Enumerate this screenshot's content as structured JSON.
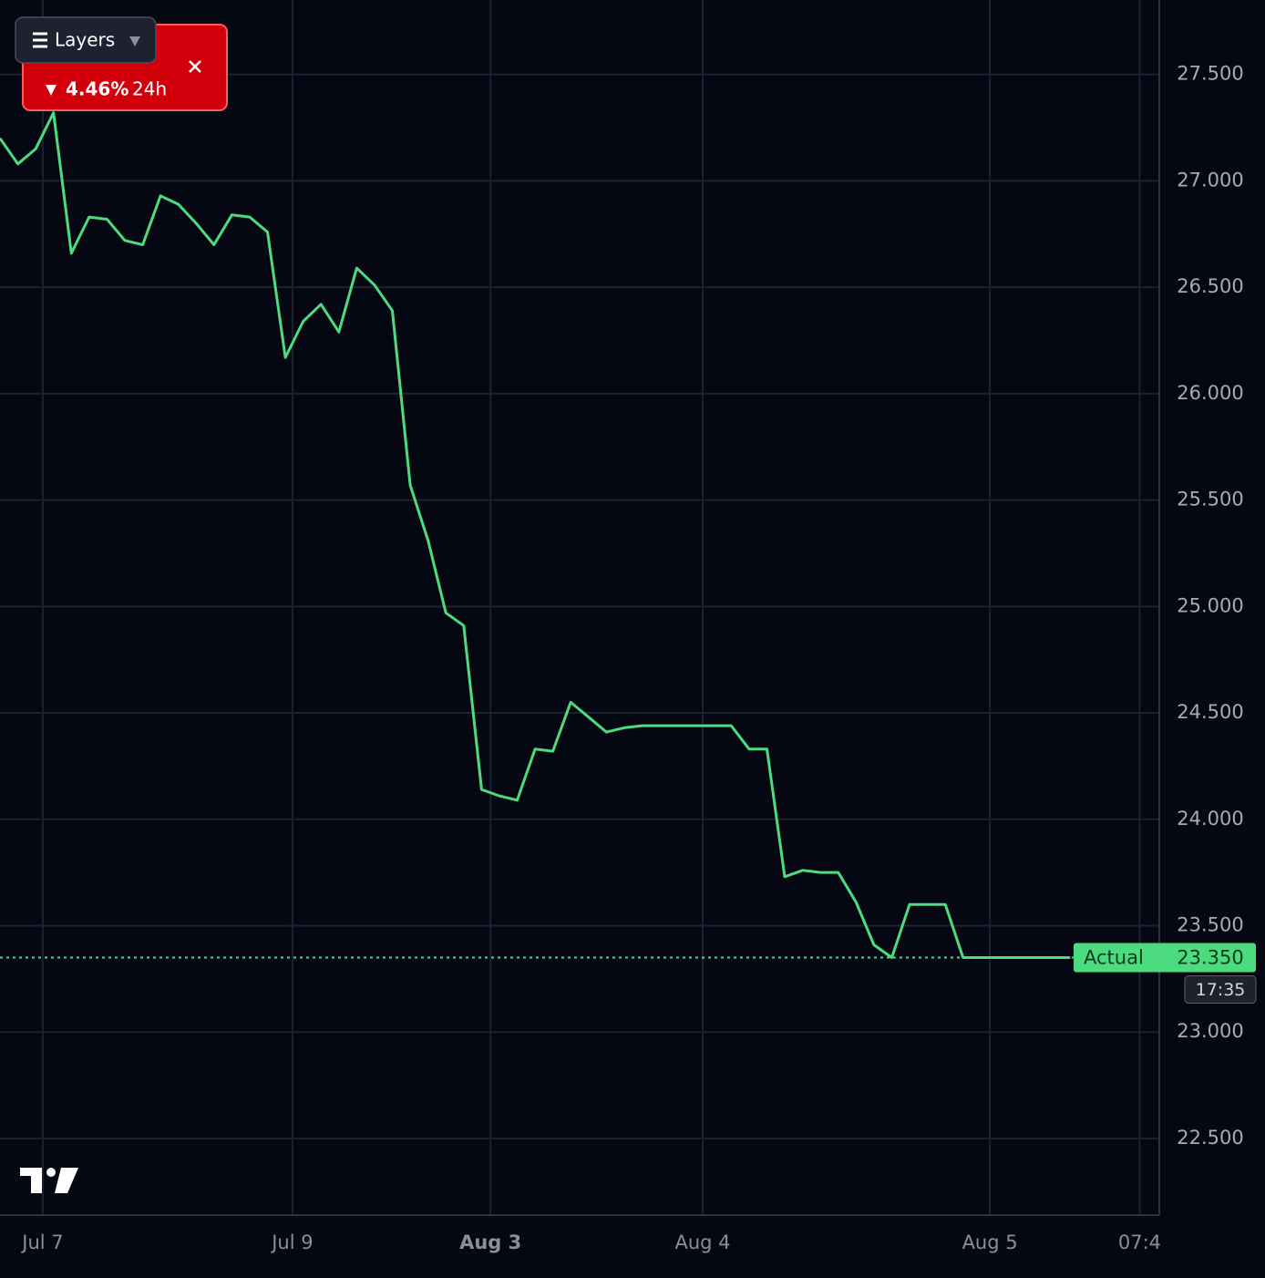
{
  "chart_data": {
    "type": "line",
    "x": [
      0,
      1,
      2,
      3,
      4,
      5,
      6,
      7,
      8,
      9,
      10,
      11,
      12,
      13,
      14,
      15,
      16,
      17,
      18,
      19,
      20,
      21,
      22,
      23,
      24,
      25,
      26,
      27,
      28,
      29,
      30,
      31,
      32,
      33,
      34,
      35,
      36,
      37,
      38,
      39,
      40,
      41,
      42,
      43,
      44,
      45,
      46,
      47,
      48,
      49,
      50,
      51,
      52,
      53,
      54,
      55,
      56,
      57,
      58,
      59,
      60
    ],
    "series": [
      {
        "color": "#4ddb80",
        "values": [
          27.2,
          27.08,
          27.15,
          27.32,
          26.66,
          26.83,
          26.82,
          26.72,
          26.7,
          26.93,
          26.89,
          26.8,
          26.7,
          26.84,
          26.83,
          26.76,
          26.17,
          26.34,
          26.42,
          26.29,
          26.59,
          26.51,
          26.39,
          25.57,
          25.31,
          24.97,
          24.91,
          24.14,
          24.11,
          24.09,
          24.33,
          24.32,
          24.55,
          24.48,
          24.41,
          24.43,
          24.44,
          24.44,
          24.44,
          24.44,
          24.44,
          24.44,
          24.33,
          24.33,
          23.73,
          23.76,
          23.75,
          23.75,
          23.61,
          23.41,
          23.35,
          23.6,
          23.6,
          23.6,
          23.35,
          23.35,
          23.35,
          23.35,
          23.35,
          23.35,
          23.35
        ]
      }
    ],
    "xlim": [
      0,
      65
    ],
    "xticks": [
      {
        "value": 2.4,
        "label": "Jul 7"
      },
      {
        "value": 16.4,
        "label": "Jul 9"
      },
      {
        "value": 27.5,
        "label": "Aug 3"
      },
      {
        "value": 39.4,
        "label": "Aug 4"
      },
      {
        "value": 55.5,
        "label": "Aug 5"
      },
      {
        "value": 63.9,
        "label": "07:4"
      }
    ],
    "ylim": [
      22.14,
      27.85
    ],
    "yticks": [
      {
        "value": 22.5,
        "label": "22.500"
      },
      {
        "value": 23,
        "label": "23.000"
      },
      {
        "value": 23.5,
        "label": "23.500"
      },
      {
        "value": 24,
        "label": "24.000"
      },
      {
        "value": 24.5,
        "label": "24.500"
      },
      {
        "value": 25,
        "label": "25.000"
      },
      {
        "value": 25.5,
        "label": "25.500"
      },
      {
        "value": 26,
        "label": "26.000"
      },
      {
        "value": 26.5,
        "label": "26.500"
      },
      {
        "value": 27,
        "label": "27.000"
      },
      {
        "value": 27.5,
        "label": "27.500"
      }
    ],
    "grid": true,
    "price_marker": {
      "name": "Actual",
      "value": 23.35,
      "label": "23.350",
      "countdown": "17:35"
    },
    "change": {
      "value": 4.46,
      "label": "4.46%",
      "period": "24h"
    },
    "layers_button": "Layers"
  }
}
